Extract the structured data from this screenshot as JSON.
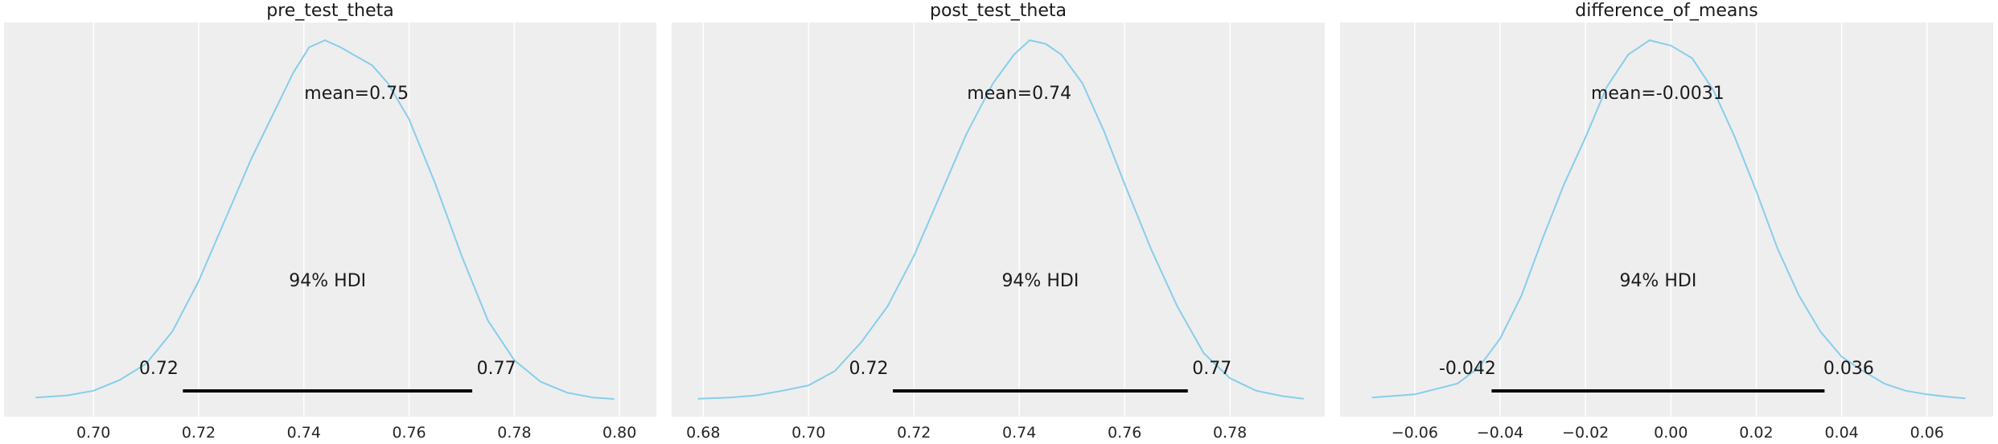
{
  "chart_data": [
    {
      "type": "density",
      "title": "pre_test_theta",
      "xlim": [
        0.683,
        0.807
      ],
      "xticks": [
        0.7,
        0.72,
        0.74,
        0.76,
        0.78,
        0.8
      ],
      "tick_labels": [
        "0.70",
        "0.72",
        "0.74",
        "0.76",
        "0.78",
        "0.80"
      ],
      "mean": 0.75,
      "mean_label": "mean=0.75",
      "hdi_label": "94% HDI",
      "hdi": [
        0.717,
        0.772
      ],
      "hdi_low_label": "0.72",
      "hdi_high_label": "0.77",
      "density": {
        "x": [
          0.689,
          0.695,
          0.7,
          0.705,
          0.71,
          0.715,
          0.72,
          0.725,
          0.73,
          0.735,
          0.738,
          0.741,
          0.744,
          0.747,
          0.75,
          0.753,
          0.756,
          0.76,
          0.765,
          0.77,
          0.775,
          0.78,
          0.785,
          0.79,
          0.795,
          0.799
        ],
        "y": [
          0.006,
          0.012,
          0.025,
          0.055,
          0.1,
          0.19,
          0.33,
          0.5,
          0.67,
          0.82,
          0.91,
          0.98,
          1.0,
          0.98,
          0.955,
          0.93,
          0.88,
          0.78,
          0.6,
          0.4,
          0.22,
          0.11,
          0.05,
          0.02,
          0.006,
          0.002
        ]
      },
      "color": "#87ceeb"
    },
    {
      "type": "density",
      "title": "post_test_theta",
      "xlim": [
        0.674,
        0.798
      ],
      "xticks": [
        0.68,
        0.7,
        0.72,
        0.74,
        0.76,
        0.78
      ],
      "tick_labels": [
        "0.68",
        "0.70",
        "0.72",
        "0.74",
        "0.76",
        "0.78"
      ],
      "mean": 0.74,
      "mean_label": "mean=0.74",
      "hdi_label": "94% HDI",
      "hdi": [
        0.716,
        0.772
      ],
      "hdi_low_label": "0.72",
      "hdi_high_label": "0.77",
      "density": {
        "x": [
          0.679,
          0.685,
          0.69,
          0.695,
          0.7,
          0.705,
          0.71,
          0.715,
          0.72,
          0.725,
          0.73,
          0.735,
          0.739,
          0.742,
          0.745,
          0.748,
          0.752,
          0.756,
          0.76,
          0.765,
          0.77,
          0.775,
          0.78,
          0.785,
          0.79,
          0.794
        ],
        "y": [
          0.003,
          0.006,
          0.012,
          0.025,
          0.04,
          0.08,
          0.16,
          0.26,
          0.4,
          0.57,
          0.74,
          0.88,
          0.96,
          1.0,
          0.99,
          0.96,
          0.88,
          0.75,
          0.6,
          0.42,
          0.26,
          0.13,
          0.06,
          0.025,
          0.01,
          0.003
        ]
      },
      "color": "#87ceeb"
    },
    {
      "type": "density",
      "title": "difference_of_means",
      "xlim": [
        -0.0775,
        0.0755
      ],
      "xticks": [
        -0.06,
        -0.04,
        -0.02,
        0.0,
        0.02,
        0.04,
        0.06
      ],
      "tick_labels": [
        "−0.06",
        "−0.04",
        "−0.02",
        "0.00",
        "0.02",
        "0.04",
        "0.06"
      ],
      "mean": -0.0031,
      "mean_label": "mean=-0.0031",
      "hdi_label": "94% HDI",
      "hdi": [
        -0.042,
        0.036
      ],
      "hdi_low_label": "-0.042",
      "hdi_high_label": "0.036",
      "density": {
        "x": [
          -0.07,
          -0.06,
          -0.05,
          -0.045,
          -0.04,
          -0.035,
          -0.03,
          -0.025,
          -0.02,
          -0.015,
          -0.01,
          -0.005,
          0.0,
          0.005,
          0.01,
          0.015,
          0.02,
          0.025,
          0.03,
          0.035,
          0.04,
          0.045,
          0.05,
          0.055,
          0.06,
          0.065,
          0.069
        ],
        "y": [
          0.006,
          0.015,
          0.045,
          0.09,
          0.17,
          0.29,
          0.45,
          0.6,
          0.73,
          0.87,
          0.96,
          1.0,
          0.985,
          0.95,
          0.86,
          0.73,
          0.58,
          0.42,
          0.29,
          0.19,
          0.12,
          0.08,
          0.045,
          0.025,
          0.015,
          0.008,
          0.004
        ]
      },
      "color": "#87ceeb"
    }
  ]
}
